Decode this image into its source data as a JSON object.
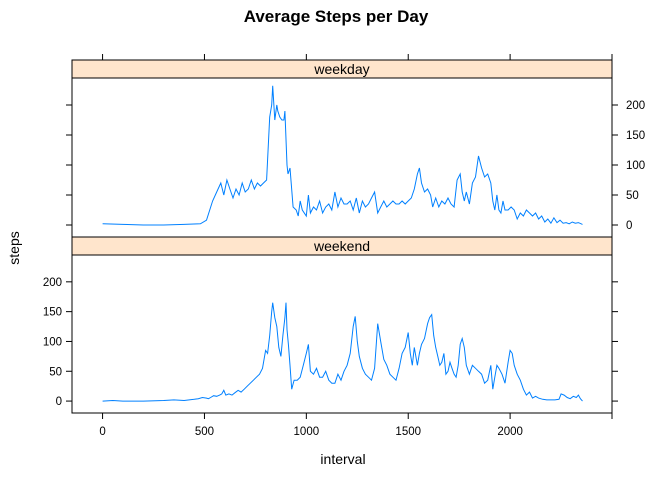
{
  "chart_data": {
    "type": "line",
    "title": "Average Steps per Day",
    "xlabel": "interval",
    "ylabel": "steps",
    "xlim": [
      -150,
      2500
    ],
    "ylim": [
      -20,
      245
    ],
    "x_ticks": [
      0,
      500,
      1000,
      1500,
      2000
    ],
    "y_ticks": [
      0,
      50,
      100,
      150,
      200
    ],
    "grid": false,
    "line_color": "#0080ff",
    "strip_color": "#ffe5cc",
    "panels": [
      {
        "strip": "weekday",
        "y_axis_side": "right",
        "points": [
          [
            0,
            2
          ],
          [
            100,
            1
          ],
          [
            200,
            0
          ],
          [
            300,
            0
          ],
          [
            400,
            1
          ],
          [
            480,
            2
          ],
          [
            510,
            8
          ],
          [
            540,
            40
          ],
          [
            560,
            55
          ],
          [
            580,
            70
          ],
          [
            595,
            50
          ],
          [
            610,
            75
          ],
          [
            625,
            60
          ],
          [
            640,
            45
          ],
          [
            655,
            60
          ],
          [
            670,
            50
          ],
          [
            685,
            70
          ],
          [
            700,
            55
          ],
          [
            715,
            60
          ],
          [
            730,
            75
          ],
          [
            745,
            60
          ],
          [
            760,
            70
          ],
          [
            775,
            65
          ],
          [
            790,
            70
          ],
          [
            805,
            75
          ],
          [
            820,
            180
          ],
          [
            830,
            200
          ],
          [
            835,
            232
          ],
          [
            845,
            175
          ],
          [
            855,
            200
          ],
          [
            860,
            190
          ],
          [
            870,
            180
          ],
          [
            880,
            175
          ],
          [
            890,
            175
          ],
          [
            895,
            190
          ],
          [
            905,
            100
          ],
          [
            910,
            85
          ],
          [
            920,
            95
          ],
          [
            935,
            30
          ],
          [
            950,
            25
          ],
          [
            960,
            15
          ],
          [
            970,
            40
          ],
          [
            980,
            25
          ],
          [
            1000,
            15
          ],
          [
            1010,
            50
          ],
          [
            1020,
            20
          ],
          [
            1035,
            30
          ],
          [
            1050,
            25
          ],
          [
            1065,
            40
          ],
          [
            1080,
            20
          ],
          [
            1095,
            30
          ],
          [
            1110,
            35
          ],
          [
            1125,
            25
          ],
          [
            1140,
            55
          ],
          [
            1155,
            30
          ],
          [
            1170,
            45
          ],
          [
            1185,
            35
          ],
          [
            1200,
            35
          ],
          [
            1215,
            40
          ],
          [
            1230,
            25
          ],
          [
            1245,
            45
          ],
          [
            1260,
            20
          ],
          [
            1275,
            40
          ],
          [
            1290,
            30
          ],
          [
            1305,
            35
          ],
          [
            1320,
            45
          ],
          [
            1335,
            55
          ],
          [
            1350,
            20
          ],
          [
            1365,
            30
          ],
          [
            1380,
            40
          ],
          [
            1395,
            30
          ],
          [
            1410,
            35
          ],
          [
            1425,
            40
          ],
          [
            1440,
            35
          ],
          [
            1455,
            35
          ],
          [
            1470,
            40
          ],
          [
            1485,
            35
          ],
          [
            1500,
            40
          ],
          [
            1515,
            45
          ],
          [
            1530,
            60
          ],
          [
            1545,
            85
          ],
          [
            1555,
            95
          ],
          [
            1565,
            70
          ],
          [
            1580,
            55
          ],
          [
            1595,
            60
          ],
          [
            1610,
            50
          ],
          [
            1620,
            30
          ],
          [
            1635,
            45
          ],
          [
            1650,
            30
          ],
          [
            1665,
            40
          ],
          [
            1680,
            35
          ],
          [
            1695,
            45
          ],
          [
            1710,
            35
          ],
          [
            1725,
            30
          ],
          [
            1740,
            75
          ],
          [
            1755,
            85
          ],
          [
            1765,
            55
          ],
          [
            1775,
            40
          ],
          [
            1785,
            55
          ],
          [
            1800,
            35
          ],
          [
            1815,
            70
          ],
          [
            1830,
            80
          ],
          [
            1845,
            115
          ],
          [
            1860,
            95
          ],
          [
            1875,
            80
          ],
          [
            1890,
            85
          ],
          [
            1905,
            70
          ],
          [
            1915,
            40
          ],
          [
            1925,
            25
          ],
          [
            1935,
            50
          ],
          [
            1945,
            25
          ],
          [
            1955,
            20
          ],
          [
            1965,
            40
          ],
          [
            1975,
            25
          ],
          [
            1990,
            25
          ],
          [
            2005,
            30
          ],
          [
            2020,
            25
          ],
          [
            2035,
            10
          ],
          [
            2050,
            20
          ],
          [
            2065,
            15
          ],
          [
            2080,
            25
          ],
          [
            2095,
            20
          ],
          [
            2110,
            15
          ],
          [
            2125,
            20
          ],
          [
            2140,
            10
          ],
          [
            2155,
            15
          ],
          [
            2170,
            5
          ],
          [
            2185,
            10
          ],
          [
            2200,
            3
          ],
          [
            2215,
            12
          ],
          [
            2230,
            4
          ],
          [
            2245,
            8
          ],
          [
            2260,
            3
          ],
          [
            2275,
            4
          ],
          [
            2290,
            2
          ],
          [
            2305,
            5
          ],
          [
            2320,
            3
          ],
          [
            2335,
            4
          ],
          [
            2355,
            1
          ]
        ]
      },
      {
        "strip": "weekend",
        "y_axis_side": "left",
        "points": [
          [
            0,
            0
          ],
          [
            50,
            1
          ],
          [
            100,
            0
          ],
          [
            200,
            0
          ],
          [
            300,
            1
          ],
          [
            350,
            2
          ],
          [
            400,
            1
          ],
          [
            450,
            3
          ],
          [
            470,
            4
          ],
          [
            490,
            6
          ],
          [
            510,
            5
          ],
          [
            520,
            4
          ],
          [
            530,
            6
          ],
          [
            545,
            9
          ],
          [
            560,
            8
          ],
          [
            575,
            10
          ],
          [
            585,
            12
          ],
          [
            595,
            18
          ],
          [
            605,
            10
          ],
          [
            620,
            12
          ],
          [
            635,
            10
          ],
          [
            650,
            14
          ],
          [
            665,
            18
          ],
          [
            680,
            15
          ],
          [
            695,
            20
          ],
          [
            710,
            25
          ],
          [
            725,
            30
          ],
          [
            740,
            35
          ],
          [
            755,
            40
          ],
          [
            770,
            45
          ],
          [
            785,
            55
          ],
          [
            800,
            85
          ],
          [
            810,
            80
          ],
          [
            820,
            110
          ],
          [
            830,
            150
          ],
          [
            835,
            165
          ],
          [
            845,
            140
          ],
          [
            855,
            125
          ],
          [
            865,
            90
          ],
          [
            875,
            75
          ],
          [
            885,
            110
          ],
          [
            895,
            140
          ],
          [
            900,
            165
          ],
          [
            905,
            120
          ],
          [
            912,
            95
          ],
          [
            920,
            60
          ],
          [
            928,
            20
          ],
          [
            940,
            35
          ],
          [
            955,
            35
          ],
          [
            970,
            40
          ],
          [
            985,
            60
          ],
          [
            1000,
            80
          ],
          [
            1010,
            95
          ],
          [
            1020,
            50
          ],
          [
            1035,
            45
          ],
          [
            1050,
            55
          ],
          [
            1065,
            40
          ],
          [
            1080,
            40
          ],
          [
            1095,
            50
          ],
          [
            1110,
            35
          ],
          [
            1125,
            30
          ],
          [
            1140,
            30
          ],
          [
            1155,
            45
          ],
          [
            1170,
            35
          ],
          [
            1185,
            50
          ],
          [
            1200,
            60
          ],
          [
            1215,
            80
          ],
          [
            1230,
            125
          ],
          [
            1240,
            142
          ],
          [
            1250,
            100
          ],
          [
            1260,
            75
          ],
          [
            1275,
            55
          ],
          [
            1290,
            45
          ],
          [
            1305,
            40
          ],
          [
            1320,
            35
          ],
          [
            1335,
            55
          ],
          [
            1350,
            130
          ],
          [
            1365,
            100
          ],
          [
            1380,
            70
          ],
          [
            1395,
            60
          ],
          [
            1410,
            45
          ],
          [
            1425,
            40
          ],
          [
            1440,
            35
          ],
          [
            1455,
            55
          ],
          [
            1470,
            80
          ],
          [
            1485,
            90
          ],
          [
            1500,
            115
          ],
          [
            1510,
            80
          ],
          [
            1520,
            60
          ],
          [
            1530,
            90
          ],
          [
            1545,
            60
          ],
          [
            1555,
            80
          ],
          [
            1565,
            95
          ],
          [
            1580,
            105
          ],
          [
            1595,
            130
          ],
          [
            1605,
            140
          ],
          [
            1615,
            145
          ],
          [
            1625,
            110
          ],
          [
            1635,
            90
          ],
          [
            1645,
            75
          ],
          [
            1655,
            60
          ],
          [
            1665,
            65
          ],
          [
            1675,
            80
          ],
          [
            1685,
            45
          ],
          [
            1695,
            50
          ],
          [
            1705,
            65
          ],
          [
            1715,
            55
          ],
          [
            1725,
            45
          ],
          [
            1735,
            40
          ],
          [
            1745,
            60
          ],
          [
            1755,
            95
          ],
          [
            1765,
            105
          ],
          [
            1775,
            90
          ],
          [
            1785,
            60
          ],
          [
            1800,
            45
          ],
          [
            1815,
            60
          ],
          [
            1830,
            55
          ],
          [
            1845,
            50
          ],
          [
            1860,
            45
          ],
          [
            1875,
            30
          ],
          [
            1890,
            35
          ],
          [
            1905,
            60
          ],
          [
            1915,
            20
          ],
          [
            1925,
            40
          ],
          [
            1935,
            60
          ],
          [
            1945,
            55
          ],
          [
            1960,
            45
          ],
          [
            1975,
            30
          ],
          [
            1990,
            65
          ],
          [
            2000,
            85
          ],
          [
            2010,
            80
          ],
          [
            2020,
            60
          ],
          [
            2035,
            45
          ],
          [
            2050,
            35
          ],
          [
            2065,
            20
          ],
          [
            2080,
            10
          ],
          [
            2095,
            15
          ],
          [
            2110,
            5
          ],
          [
            2125,
            8
          ],
          [
            2140,
            5
          ],
          [
            2160,
            3
          ],
          [
            2180,
            2
          ],
          [
            2200,
            2
          ],
          [
            2220,
            2
          ],
          [
            2240,
            3
          ],
          [
            2250,
            12
          ],
          [
            2265,
            10
          ],
          [
            2280,
            6
          ],
          [
            2295,
            4
          ],
          [
            2310,
            8
          ],
          [
            2325,
            6
          ],
          [
            2335,
            10
          ],
          [
            2345,
            4
          ],
          [
            2355,
            0
          ]
        ]
      }
    ]
  }
}
